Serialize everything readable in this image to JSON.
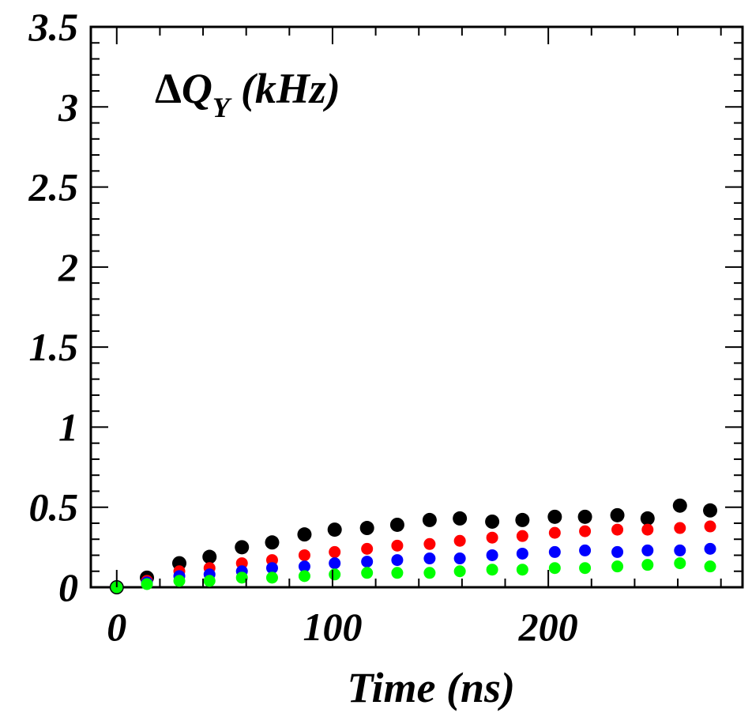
{
  "chart_data": {
    "type": "scatter",
    "title_parts": {
      "delta": "Δ",
      "symbol": "Q",
      "subscript": "Y",
      "unit": "(kHz)"
    },
    "xlabel": "Time (ns)",
    "ylabel": "",
    "xlim": [
      -12,
      290
    ],
    "ylim": [
      0,
      3.5
    ],
    "x_ticks": [
      0,
      100,
      200
    ],
    "x_tick_labels": [
      "0",
      "100",
      "200"
    ],
    "y_ticks": [
      0,
      0.5,
      1,
      1.5,
      2,
      2.5,
      3,
      3.5
    ],
    "y_tick_labels": [
      "0",
      "0.5",
      "1",
      "1.5",
      "2",
      "2.5",
      "3",
      "3.5"
    ],
    "grid": false,
    "legend": "none",
    "x": [
      0,
      14,
      29,
      43,
      58,
      72,
      87,
      101,
      116,
      130,
      145,
      159,
      174,
      188,
      203,
      217,
      232,
      246,
      261,
      275
    ],
    "series": [
      {
        "color": "#000000",
        "values": [
          0.0,
          0.06,
          0.15,
          0.19,
          0.25,
          0.28,
          0.33,
          0.36,
          0.37,
          0.39,
          0.42,
          0.43,
          0.41,
          0.42,
          0.44,
          0.44,
          0.45,
          0.43,
          0.51,
          0.48
        ]
      },
      {
        "color": "#ff0000",
        "values": [
          0.0,
          0.04,
          0.1,
          0.12,
          0.15,
          0.17,
          0.2,
          0.22,
          0.24,
          0.26,
          0.27,
          0.29,
          0.31,
          0.32,
          0.34,
          0.35,
          0.36,
          0.36,
          0.37,
          0.38
        ]
      },
      {
        "color": "#0000ff",
        "values": [
          0.0,
          0.03,
          0.07,
          0.08,
          0.1,
          0.12,
          0.13,
          0.15,
          0.16,
          0.17,
          0.18,
          0.18,
          0.2,
          0.21,
          0.22,
          0.23,
          0.22,
          0.23,
          0.23,
          0.24
        ]
      },
      {
        "color": "#00ff00",
        "values": [
          0.0,
          0.02,
          0.04,
          0.04,
          0.06,
          0.06,
          0.07,
          0.08,
          0.09,
          0.09,
          0.09,
          0.1,
          0.11,
          0.11,
          0.12,
          0.12,
          0.13,
          0.14,
          0.15,
          0.13
        ]
      }
    ]
  }
}
